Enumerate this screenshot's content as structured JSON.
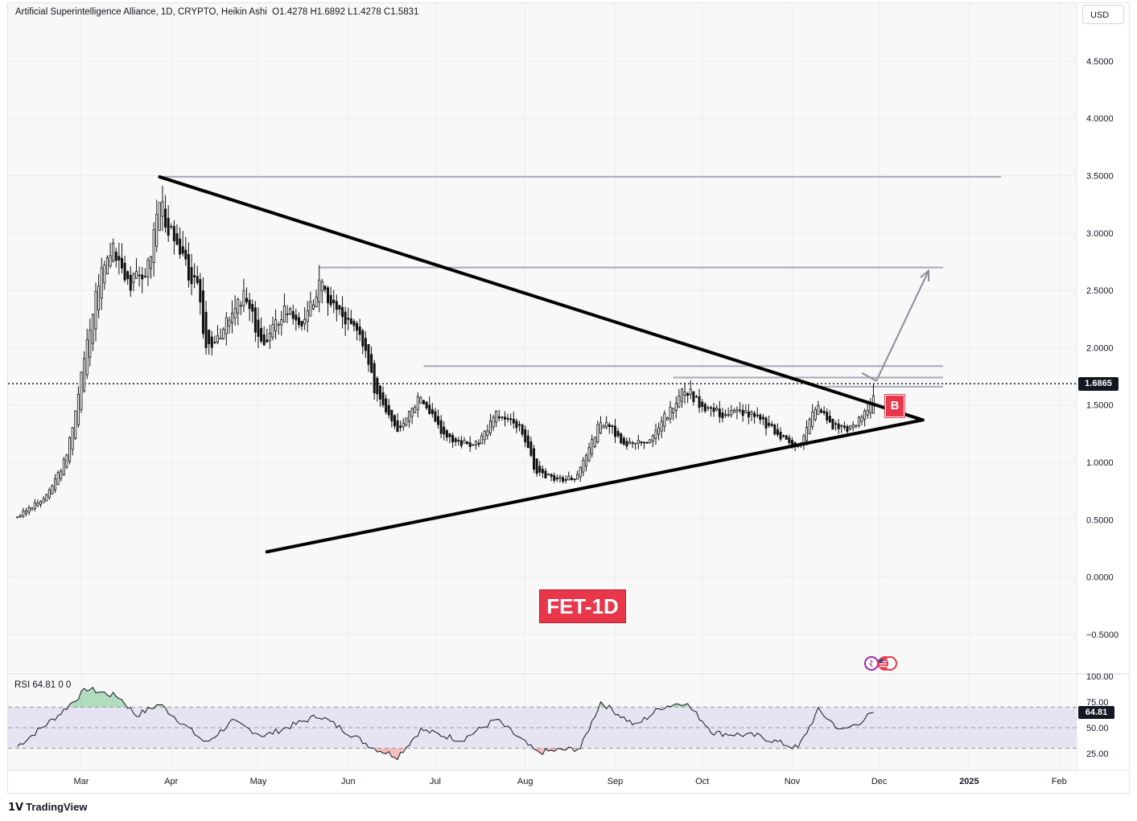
{
  "header": {
    "title": "Artificial Superintelligence Alliance, 1D, CRYPTO, Heikin Ashi",
    "ohlc": "O1.4278  H1.6892  L1.4278  C1.5831"
  },
  "currency_button": "USD",
  "current_price_label": "1.6865",
  "rsi_header": "RSI  64.81  0  0",
  "rsi_value_label": "64.81",
  "watermark_label": "FET-1D",
  "signal_badge": "B",
  "branding": "TradingView",
  "colors": {
    "background": "#f8f8f8",
    "candle": "#111111",
    "trendline": "#000000",
    "resistance": "#a8a8b8",
    "label_red": "#e8364a",
    "rsi_band": "#e6e3f3",
    "rsi_overbought": "#2fa84f",
    "rsi_oversold": "#ef5350"
  },
  "chart_data": [
    {
      "type": "candlestick",
      "chart_style": "Heikin Ashi",
      "symbol": "Artificial Superintelligence Alliance",
      "interval": "1D",
      "title": "Artificial Superintelligence Alliance, 1D, CRYPTO, Heikin Ashi",
      "y_ticks": [
        "4.5000",
        "4.0000",
        "3.5000",
        "3.0000",
        "2.5000",
        "2.0000",
        "1.5000",
        "1.0000",
        "0.5000",
        "0.0000",
        "−0.5000"
      ],
      "ylim": [
        -0.85,
        5.0
      ],
      "x_ticks": [
        "Mar",
        "Apr",
        "May",
        "Jun",
        "Jul",
        "Aug",
        "Sep",
        "Oct",
        "Nov",
        "Dec",
        "2025",
        "Feb"
      ],
      "approx_close_path": [
        {
          "date": "2024-02-08",
          "close": 0.53
        },
        {
          "date": "2024-02-18",
          "close": 0.7
        },
        {
          "date": "2024-02-25",
          "close": 1.05
        },
        {
          "date": "2024-03-01",
          "close": 1.75
        },
        {
          "date": "2024-03-07",
          "close": 2.6
        },
        {
          "date": "2024-03-12",
          "close": 2.9
        },
        {
          "date": "2024-03-18",
          "close": 2.55
        },
        {
          "date": "2024-03-24",
          "close": 2.7
        },
        {
          "date": "2024-03-28",
          "close": 3.3
        },
        {
          "date": "2024-04-02",
          "close": 2.9
        },
        {
          "date": "2024-04-10",
          "close": 2.5
        },
        {
          "date": "2024-04-13",
          "close": 2.0
        },
        {
          "date": "2024-04-20",
          "close": 2.2
        },
        {
          "date": "2024-04-26",
          "close": 2.45
        },
        {
          "date": "2024-05-03",
          "close": 2.0
        },
        {
          "date": "2024-05-10",
          "close": 2.35
        },
        {
          "date": "2024-05-17",
          "close": 2.2
        },
        {
          "date": "2024-05-22",
          "close": 2.55
        },
        {
          "date": "2024-05-29",
          "close": 2.3
        },
        {
          "date": "2024-06-05",
          "close": 2.1
        },
        {
          "date": "2024-06-10",
          "close": 1.65
        },
        {
          "date": "2024-06-18",
          "close": 1.3
        },
        {
          "date": "2024-06-26",
          "close": 1.6
        },
        {
          "date": "2024-07-05",
          "close": 1.2
        },
        {
          "date": "2024-07-15",
          "close": 1.15
        },
        {
          "date": "2024-07-22",
          "close": 1.42
        },
        {
          "date": "2024-07-30",
          "close": 1.3
        },
        {
          "date": "2024-08-05",
          "close": 0.9
        },
        {
          "date": "2024-08-12",
          "close": 0.85
        },
        {
          "date": "2024-08-19",
          "close": 0.88
        },
        {
          "date": "2024-08-27",
          "close": 1.38
        },
        {
          "date": "2024-09-05",
          "close": 1.15
        },
        {
          "date": "2024-09-12",
          "close": 1.2
        },
        {
          "date": "2024-09-20",
          "close": 1.45
        },
        {
          "date": "2024-09-25",
          "close": 1.65
        },
        {
          "date": "2024-10-01",
          "close": 1.5
        },
        {
          "date": "2024-10-08",
          "close": 1.42
        },
        {
          "date": "2024-10-15",
          "close": 1.45
        },
        {
          "date": "2024-10-22",
          "close": 1.35
        },
        {
          "date": "2024-10-28",
          "close": 1.22
        },
        {
          "date": "2024-11-04",
          "close": 1.15
        },
        {
          "date": "2024-11-09",
          "close": 1.5
        },
        {
          "date": "2024-11-15",
          "close": 1.32
        },
        {
          "date": "2024-11-22",
          "close": 1.3
        },
        {
          "date": "2024-11-27",
          "close": 1.48
        },
        {
          "date": "2024-11-29",
          "close": 1.5831
        }
      ],
      "last_bar": {
        "open": 1.4278,
        "high": 1.6892,
        "low": 1.4278,
        "close": 1.5831
      },
      "current_price_line": 1.6865,
      "trendlines": [
        {
          "name": "descending",
          "from": {
            "date": "2024-03-28",
            "price": 3.49
          },
          "to": {
            "date": "2024-12-16",
            "price": 1.37
          }
        },
        {
          "name": "ascending",
          "from": {
            "date": "2024-05-04",
            "price": 0.22
          },
          "to": {
            "date": "2024-12-16",
            "price": 1.37
          }
        }
      ],
      "horizontal_levels": [
        {
          "price": 3.49,
          "from": "2024-03-28",
          "to": "2025-01-12"
        },
        {
          "price": 2.7,
          "from": "2024-05-22",
          "to": "2024-12-23"
        },
        {
          "price": 1.84,
          "from": "2024-06-27",
          "to": "2024-12-23"
        },
        {
          "price": 1.74,
          "from": "2024-09-21",
          "to": "2024-12-23"
        },
        {
          "price": 1.66,
          "from": "2024-11-10",
          "to": "2024-12-23"
        }
      ],
      "projection_arrow": {
        "from": {
          "date": "2024-11-30",
          "price": 1.71
        },
        "to": {
          "date": "2024-12-18",
          "price": 2.67
        }
      }
    },
    {
      "type": "line",
      "indicator": "RSI",
      "current_value": 64.81,
      "y_ticks": [
        "100.00",
        "75.00",
        "50.00",
        "25.00"
      ],
      "ylim": [
        20,
        100
      ],
      "bands": {
        "upper": 70,
        "middle": 50,
        "lower": 30
      },
      "approx_path": [
        {
          "date": "2024-02-08",
          "rsi": 32
        },
        {
          "date": "2024-02-22",
          "rsi": 62
        },
        {
          "date": "2024-03-03",
          "rsi": 88
        },
        {
          "date": "2024-03-14",
          "rsi": 80
        },
        {
          "date": "2024-03-20",
          "rsi": 62
        },
        {
          "date": "2024-03-28",
          "rsi": 73
        },
        {
          "date": "2024-04-13",
          "rsi": 35
        },
        {
          "date": "2024-04-22",
          "rsi": 56
        },
        {
          "date": "2024-05-03",
          "rsi": 42
        },
        {
          "date": "2024-05-22",
          "rsi": 62
        },
        {
          "date": "2024-06-10",
          "rsi": 30
        },
        {
          "date": "2024-06-18",
          "rsi": 22
        },
        {
          "date": "2024-06-26",
          "rsi": 48
        },
        {
          "date": "2024-07-10",
          "rsi": 38
        },
        {
          "date": "2024-07-22",
          "rsi": 58
        },
        {
          "date": "2024-08-05",
          "rsi": 26
        },
        {
          "date": "2024-08-20",
          "rsi": 30
        },
        {
          "date": "2024-08-27",
          "rsi": 75
        },
        {
          "date": "2024-09-08",
          "rsi": 52
        },
        {
          "date": "2024-09-17",
          "rsi": 70
        },
        {
          "date": "2024-09-25",
          "rsi": 75
        },
        {
          "date": "2024-10-05",
          "rsi": 45
        },
        {
          "date": "2024-10-20",
          "rsi": 42
        },
        {
          "date": "2024-11-03",
          "rsi": 30
        },
        {
          "date": "2024-11-10",
          "rsi": 67
        },
        {
          "date": "2024-11-18",
          "rsi": 47
        },
        {
          "date": "2024-11-24",
          "rsi": 55
        },
        {
          "date": "2024-11-29",
          "rsi": 64.81
        }
      ]
    }
  ]
}
